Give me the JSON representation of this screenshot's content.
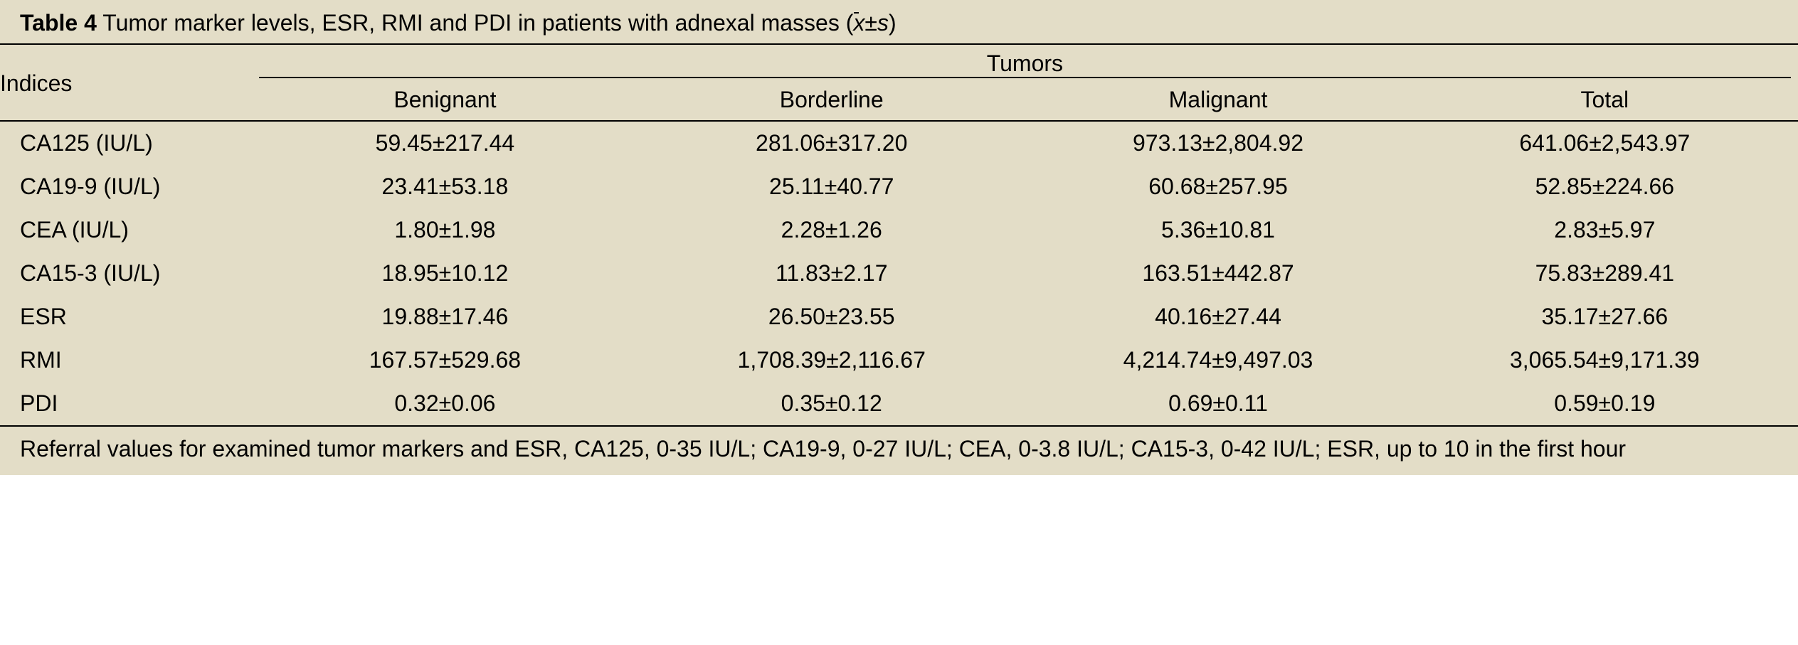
{
  "caption": {
    "label": "Table 4",
    "text": " Tumor marker levels, ESR, RMI and PDI in patients with adnexal masses (",
    "stat_x": "x",
    "stat_pm": "±",
    "stat_s": "s",
    "close": ")"
  },
  "table": {
    "type": "table",
    "background_color": "#e3ddc7",
    "text_color": "#000000",
    "rule_color": "#000000",
    "font_size_pt": 24,
    "header": {
      "row_label": "Indices",
      "spanner": "Tumors",
      "columns": [
        "Benignant",
        "Borderline",
        "Malignant",
        "Total"
      ]
    },
    "column_widths_pct": [
      14,
      21.5,
      21.5,
      21.5,
      21.5
    ],
    "rows": [
      {
        "label": "CA125 (IU/L)",
        "values": [
          "59.45±217.44",
          "281.06±317.20",
          "973.13±2,804.92",
          "641.06±2,543.97"
        ]
      },
      {
        "label": "CA19-9 (IU/L)",
        "values": [
          "23.41±53.18",
          "25.11±40.77",
          "60.68±257.95",
          "52.85±224.66"
        ]
      },
      {
        "label": "CEA (IU/L)",
        "values": [
          "1.80±1.98",
          "2.28±1.26",
          "5.36±10.81",
          "2.83±5.97"
        ]
      },
      {
        "label": "CA15-3 (IU/L)",
        "values": [
          "18.95±10.12",
          "11.83±2.17",
          "163.51±442.87",
          "75.83±289.41"
        ]
      },
      {
        "label": "ESR",
        "values": [
          "19.88±17.46",
          "26.50±23.55",
          "40.16±27.44",
          "35.17±27.66"
        ]
      },
      {
        "label": "RMI",
        "values": [
          "167.57±529.68",
          "1,708.39±2,116.67",
          "4,214.74±9,497.03",
          "3,065.54±9,171.39"
        ]
      },
      {
        "label": "PDI",
        "values": [
          "0.32±0.06",
          "0.35±0.12",
          "0.69±0.11",
          "0.59±0.19"
        ]
      }
    ],
    "footnote": "Referral values for examined tumor markers and ESR, CA125, 0-35 IU/L; CA19-9, 0-27 IU/L; CEA, 0-3.8 IU/L; CA15-3, 0-42 IU/L; ESR, up to 10 in the first hour"
  }
}
